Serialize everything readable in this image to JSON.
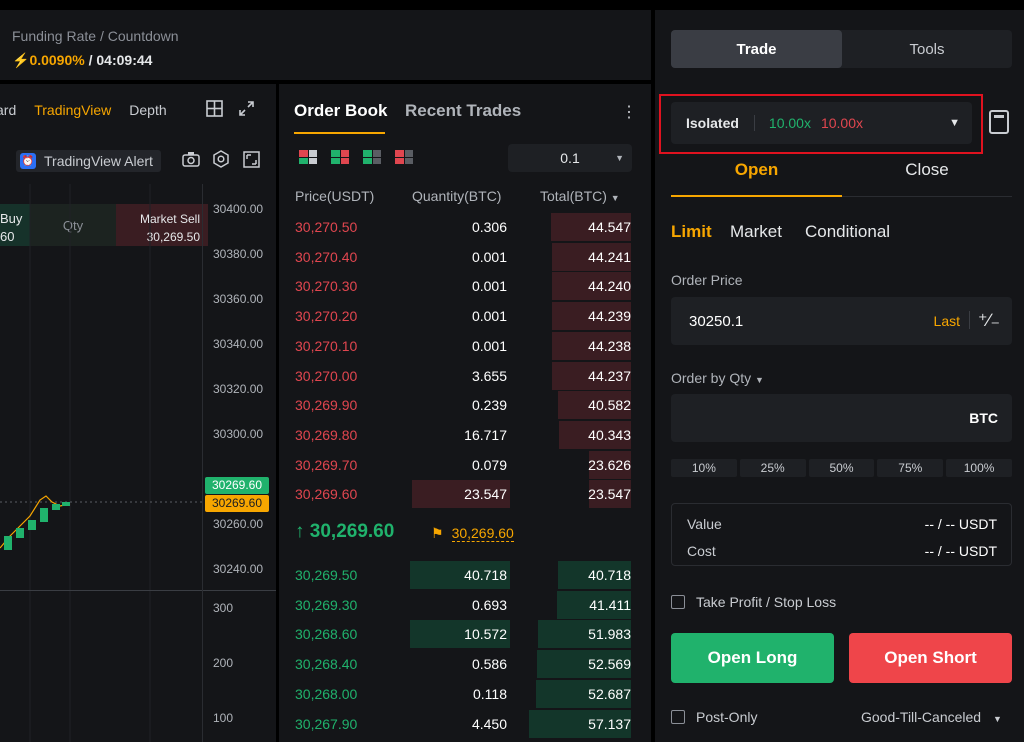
{
  "funding": {
    "label": "Funding Rate / Countdown",
    "rate": "0.0090%",
    "separator": " / ",
    "countdown": "04:09:44"
  },
  "chart": {
    "tabs": [
      {
        "label": "ard",
        "active": false
      },
      {
        "label": "TradingView",
        "active": true
      },
      {
        "label": "Depth",
        "active": false
      }
    ],
    "alert_label": "TradingView Alert",
    "buy_label": "Buy",
    "buy_price_partial": "60",
    "qty_label": "Qty",
    "sell_label": "Market Sell",
    "sell_price": "30,269.50",
    "price_axis": [
      "30400.00",
      "30380.00",
      "30360.00",
      "30340.00",
      "30320.00",
      "30300.00",
      "30260.00",
      "30240.00"
    ],
    "last_price_tag": "30269.60",
    "mark_price_tag": "30269.60",
    "volume_axis": [
      "300",
      "200",
      "100"
    ]
  },
  "orderbook": {
    "tab_active": "Order Book",
    "tab_inactive": "Recent Trades",
    "precision": "0.1",
    "headers": {
      "price": "Price(USDT)",
      "quantity": "Quantity(BTC)",
      "total": "Total(BTC)"
    },
    "asks": [
      {
        "price": "30,270.50",
        "qty": "0.306",
        "total": "44.547",
        "qfill": 0.0,
        "tfill": 0.78
      },
      {
        "price": "30,270.40",
        "qty": "0.001",
        "total": "44.241",
        "qfill": 0.0,
        "tfill": 0.77
      },
      {
        "price": "30,270.30",
        "qty": "0.001",
        "total": "44.240",
        "qfill": 0.0,
        "tfill": 0.77
      },
      {
        "price": "30,270.20",
        "qty": "0.001",
        "total": "44.239",
        "qfill": 0.0,
        "tfill": 0.77
      },
      {
        "price": "30,270.10",
        "qty": "0.001",
        "total": "44.238",
        "qfill": 0.0,
        "tfill": 0.77
      },
      {
        "price": "30,270.00",
        "qty": "3.655",
        "total": "44.237",
        "qfill": 0.0,
        "tfill": 0.77
      },
      {
        "price": "30,269.90",
        "qty": "0.239",
        "total": "40.582",
        "qfill": 0.0,
        "tfill": 0.71
      },
      {
        "price": "30,269.80",
        "qty": "16.717",
        "total": "40.343",
        "qfill": 0.0,
        "tfill": 0.7
      },
      {
        "price": "30,269.70",
        "qty": "0.079",
        "total": "23.626",
        "qfill": 0.0,
        "tfill": 0.41
      },
      {
        "price": "30,269.60",
        "qty": "23.547",
        "total": "23.547",
        "qfill": 0.98,
        "tfill": 0.41
      }
    ],
    "last_price": "30,269.60",
    "mark_price": "30,269.60",
    "bids": [
      {
        "price": "30,269.50",
        "qty": "40.718",
        "total": "40.718",
        "qfill": 1.0,
        "tfill": 0.71
      },
      {
        "price": "30,269.30",
        "qty": "0.693",
        "total": "41.411",
        "qfill": 0.0,
        "tfill": 0.72
      },
      {
        "price": "30,268.60",
        "qty": "10.572",
        "total": "51.983",
        "qfill": 1.0,
        "tfill": 0.9
      },
      {
        "price": "30,268.40",
        "qty": "0.586",
        "total": "52.569",
        "qfill": 0.0,
        "tfill": 0.91
      },
      {
        "price": "30,268.00",
        "qty": "0.118",
        "total": "52.687",
        "qfill": 0.0,
        "tfill": 0.92
      },
      {
        "price": "30,267.90",
        "qty": "4.450",
        "total": "57.137",
        "qfill": 0.0,
        "tfill": 0.99
      }
    ]
  },
  "trade": {
    "tab_trade": "Trade",
    "tab_tools": "Tools",
    "margin_mode": "Isolated",
    "leverage_long": "10.00x",
    "leverage_short": "10.00x",
    "open_label": "Open",
    "close_label": "Close",
    "order_types": [
      "Limit",
      "Market",
      "Conditional"
    ],
    "order_price_label": "Order Price",
    "order_price_value": "30250.1",
    "last_label": "Last",
    "qty_label": "Order by Qty",
    "qty_unit": "BTC",
    "percents": [
      "10%",
      "25%",
      "50%",
      "75%",
      "100%"
    ],
    "value_label": "Value",
    "cost_label": "Cost",
    "value_display": "-- / -- USDT",
    "cost_display": "-- / -- USDT",
    "tpsl_label": "Take Profit / Stop Loss",
    "open_long": "Open Long",
    "open_short": "Open Short",
    "post_only": "Post-Only",
    "tif": "Good-Till-Canceled"
  },
  "colors": {
    "accent": "#f7a600",
    "buy": "#20b26c",
    "sell": "#ef454a"
  }
}
